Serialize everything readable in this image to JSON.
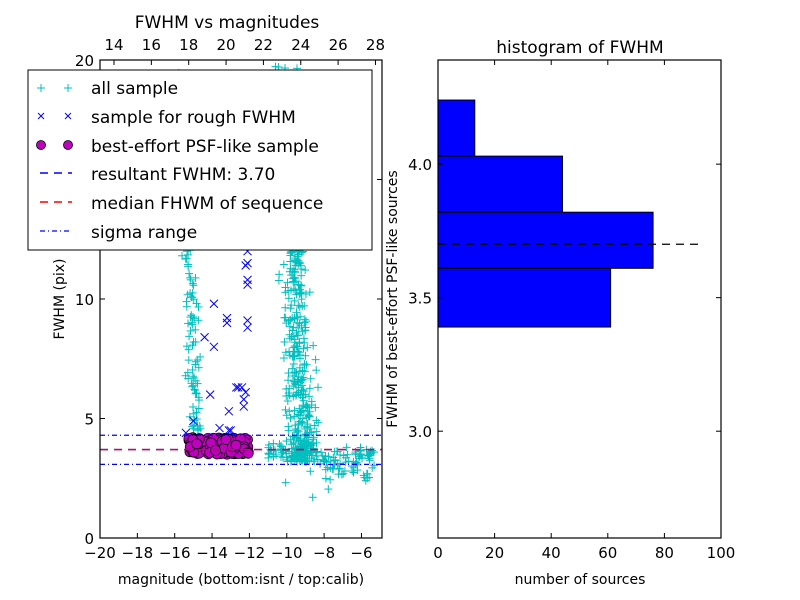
{
  "chart_data": [
    {
      "type": "scatter",
      "title": "FWHM vs magnitudes",
      "xlabel": "magnitude (bottom:isnt / top:calib)",
      "ylabel": "FWHM (pix)",
      "xlim": [
        -20,
        -4.9
      ],
      "ylim": [
        0,
        20
      ],
      "xticks": [
        "−20",
        "−18",
        "−16",
        "−14",
        "−12",
        "−10",
        "−8",
        "−6"
      ],
      "xtick_values": [
        -20,
        -18,
        -16,
        -14,
        -12,
        -10,
        -8,
        -6
      ],
      "yticks": [
        "0",
        "5",
        "10",
        "15",
        "20"
      ],
      "ytick_values": [
        0,
        5,
        10,
        15,
        20
      ],
      "top_axis": {
        "offset": 33.25,
        "ticks": [
          "14",
          "16",
          "18",
          "20",
          "22",
          "24",
          "26",
          "28"
        ],
        "tick_values": [
          14,
          16,
          18,
          20,
          22,
          24,
          26,
          28
        ]
      },
      "legend_position": "upper-left",
      "series": [
        {
          "name": "all sample",
          "marker": "+",
          "color": "#00BFBF",
          "clusters": [
            {
              "x_range": [
                -16,
                -14.5
              ],
              "y_range": [
                4.5,
                19.5
              ],
              "count": 140
            },
            {
              "x_range": [
                -11.5,
                -7.5
              ],
              "y_range": [
                3.2,
                19.8
              ],
              "count": 520
            },
            {
              "x_range": [
                -11,
                -5.3
              ],
              "y_range": [
                1.7,
                4.5
              ],
              "count": 160
            }
          ]
        },
        {
          "name": "sample for rough FWHM",
          "marker": "x",
          "color": "#0000FF",
          "x": [
            -15.4,
            -15.0,
            -14.4,
            -14.1,
            -13.9,
            -13.9,
            -13.2,
            -13.2,
            -13.1,
            -13.1,
            -12.7,
            -12.6,
            -12.4,
            -12.3,
            -12.3,
            -12.2,
            -12.2,
            -12.1,
            -12.1,
            -12.1,
            -12.1,
            -12.1,
            -12.1,
            -13.6,
            -13.0
          ],
          "y": [
            4.4,
            4.9,
            8.4,
            6.0,
            9.8,
            8.0,
            9.2,
            9.0,
            5.3,
            4.5,
            6.3,
            6.3,
            6.3,
            5.8,
            5.5,
            6.1,
            11.4,
            11.5,
            10.8,
            10.6,
            9.1,
            8.8,
            12.0,
            4.6,
            4.5
          ]
        },
        {
          "name": "best-effort PSF-like sample",
          "marker": "o",
          "color": "#BF00BF",
          "x_range": [
            -15.4,
            -11.9
          ],
          "y_range": [
            3.4,
            4.3
          ],
          "count": 194
        },
        {
          "name": "resultant FWHM: 3.70",
          "type": "hline",
          "value": 3.7,
          "color": "#0000FF",
          "style": "dashed"
        },
        {
          "name": "median FHWM of sequence",
          "type": "hline",
          "value": 3.7,
          "color": "#FF0000",
          "style": "dashed"
        },
        {
          "name": "sigma range",
          "type": "hline",
          "values": [
            3.08,
            4.3
          ],
          "color": "#0000FF",
          "style": "dashdot"
        }
      ]
    },
    {
      "type": "bar",
      "orientation": "horizontal",
      "title": "histogram of FWHM",
      "xlabel": "number of sources",
      "ylabel": "FWHM of best-effort PSF-like sources",
      "xlim": [
        0,
        100
      ],
      "ylim": [
        2.6,
        4.39
      ],
      "xticks": [
        "0",
        "20",
        "40",
        "60",
        "80",
        "100"
      ],
      "xtick_values": [
        0,
        20,
        40,
        60,
        80,
        100
      ],
      "yticks": [
        "3.0",
        "3.5",
        "4.0"
      ],
      "ytick_values": [
        3.0,
        3.5,
        4.0
      ],
      "bins": [
        [
          3.39,
          3.61
        ],
        [
          3.61,
          3.82
        ],
        [
          3.82,
          4.03
        ],
        [
          4.03,
          4.24
        ]
      ],
      "values": [
        61,
        76,
        44,
        13
      ],
      "color": "#0000FF",
      "reference_line": {
        "value": 3.7,
        "x_extent": [
          0,
          92
        ],
        "color": "#000000",
        "style": "dashed"
      }
    }
  ]
}
